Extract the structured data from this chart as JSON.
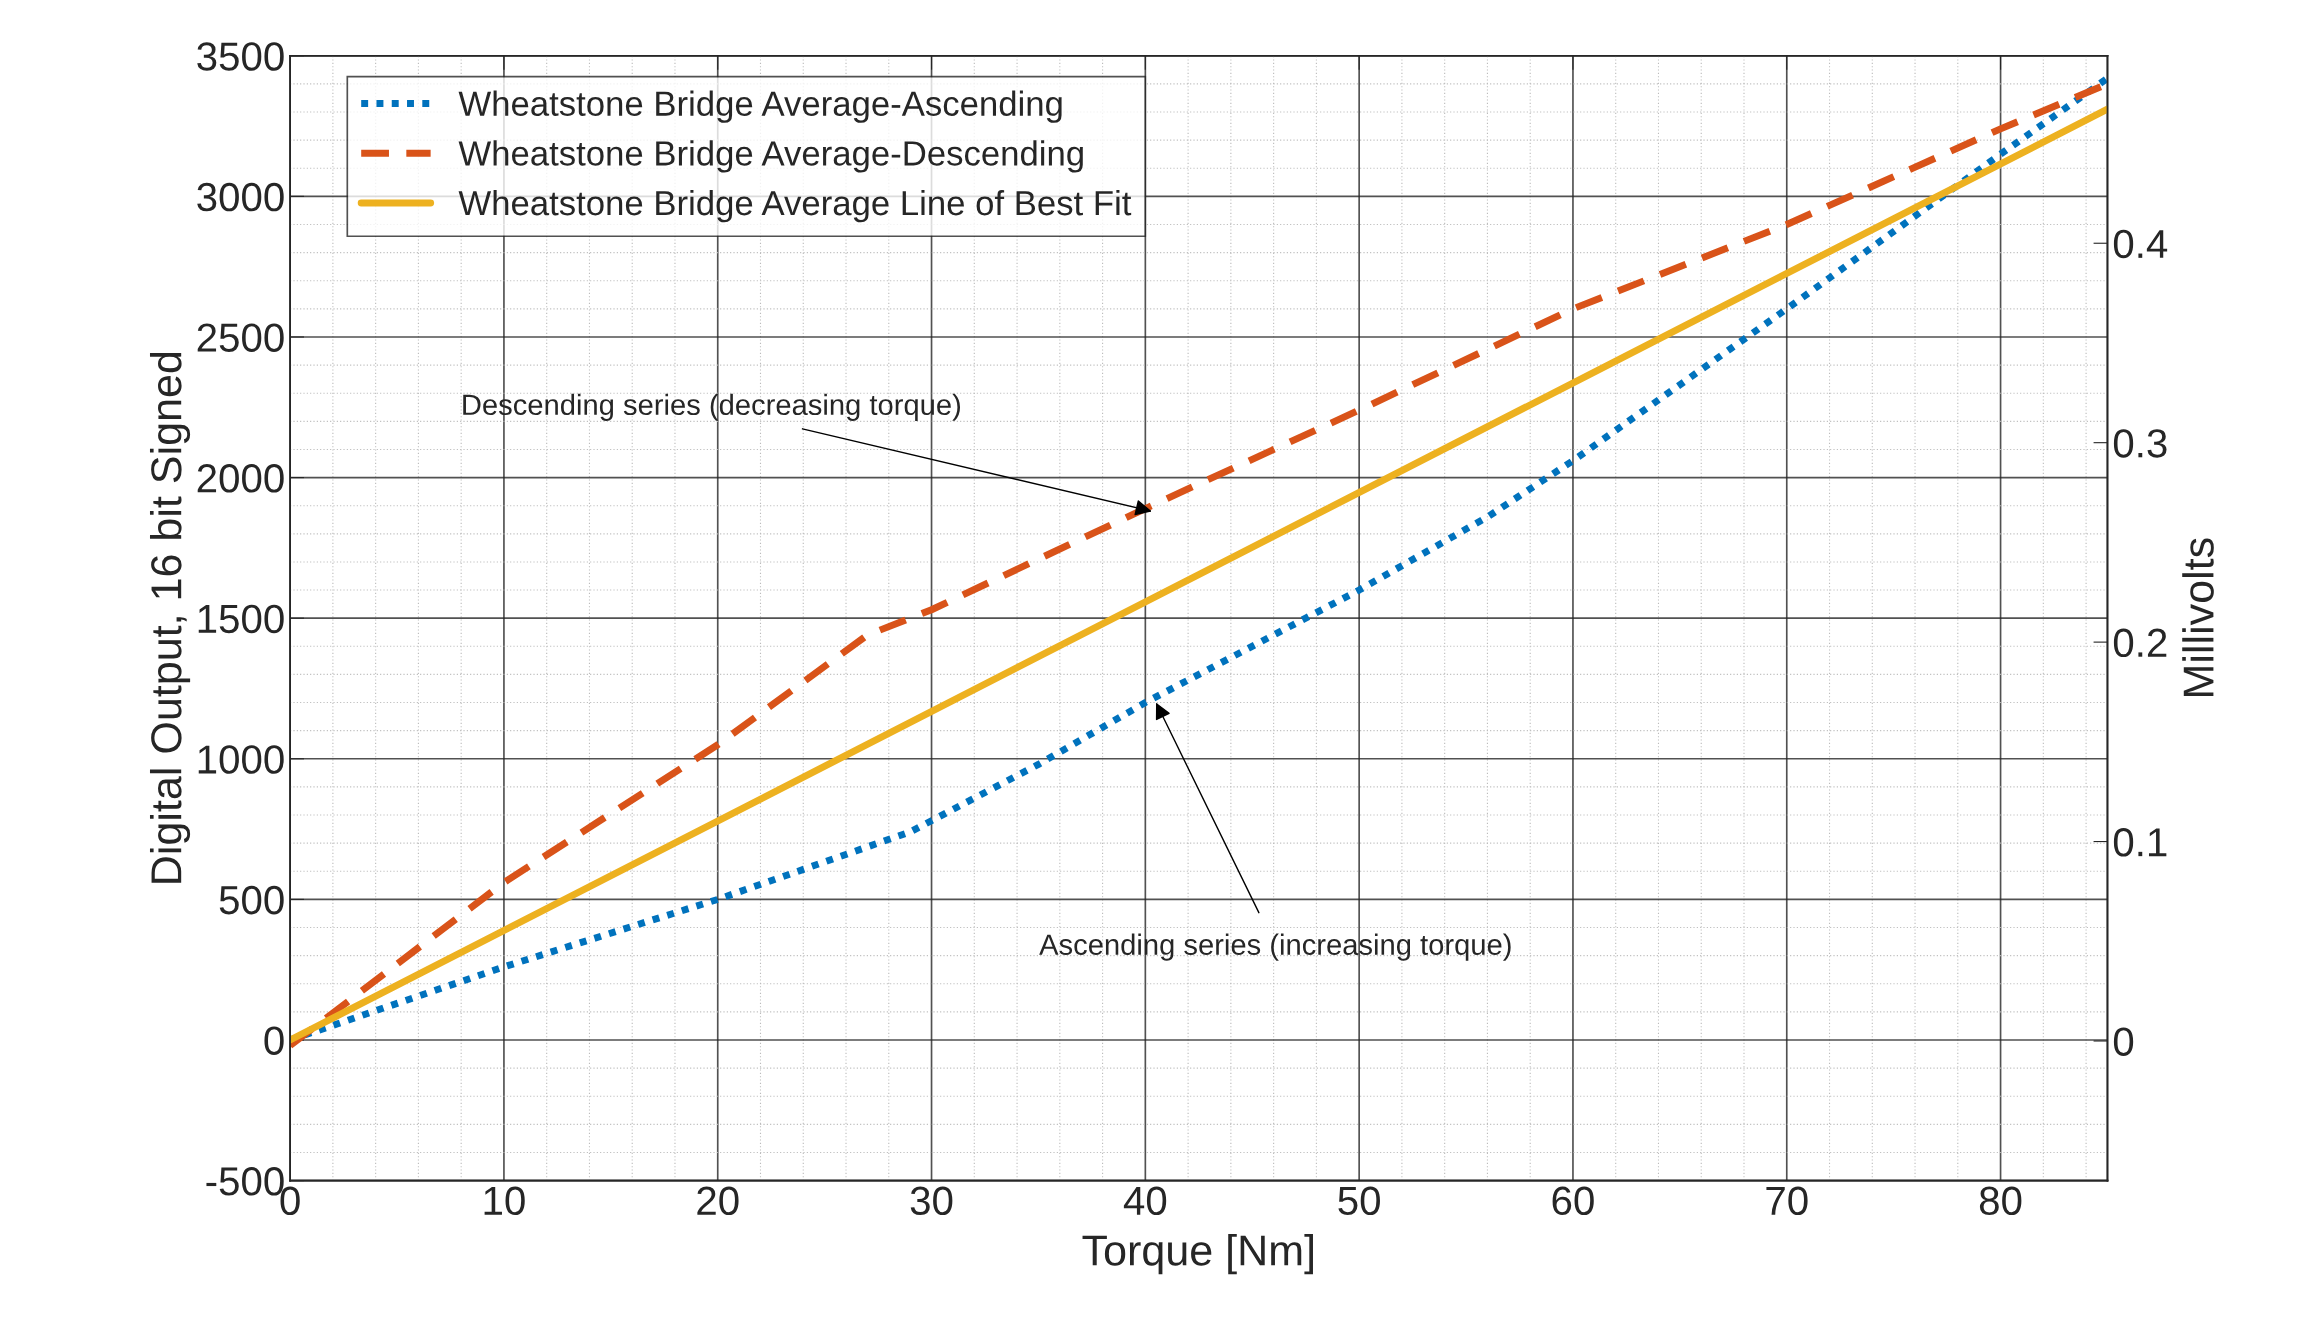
{
  "chart_data": {
    "type": "line",
    "xlabel": "Torque [Nm]",
    "ylabel": "Digital Output, 16 bit Signed",
    "y2label": "Millivolts",
    "xlim": [
      0,
      85
    ],
    "xticks": [
      0,
      10,
      20,
      30,
      40,
      50,
      60,
      70,
      80
    ],
    "ylim": [
      -500,
      3500
    ],
    "yticks": [
      -500,
      0,
      500,
      1000,
      1500,
      2000,
      2500,
      3000,
      3500
    ],
    "y2lim": [
      -0.07,
      0.494
    ],
    "y2ticks": [
      0,
      0.1,
      0.2,
      0.3,
      0.4
    ],
    "grid": true,
    "legend": "top left",
    "series": [
      {
        "name": "Wheatstone Bridge Average-Ascending",
        "color": "#0072bd",
        "line_style": "dotted",
        "x": [
          0,
          10,
          20,
          29,
          35,
          40,
          50,
          56,
          60,
          70,
          80,
          85
        ],
        "values": [
          0,
          260,
          500,
          740,
          980,
          1200,
          1600,
          1860,
          2060,
          2600,
          3150,
          3420
        ]
      },
      {
        "name": "Wheatstone Bridge Average-Descending",
        "color": "#d95319",
        "line_style": "dashed",
        "x": [
          0,
          10,
          20,
          27,
          30,
          40,
          50,
          60,
          70,
          80,
          85
        ],
        "values": [
          -20,
          560,
          1050,
          1440,
          1530,
          1890,
          2240,
          2600,
          2900,
          3240,
          3400
        ]
      },
      {
        "name": "Wheatstone Bridge Average Line of Best Fit",
        "color": "#edb120",
        "line_style": "solid",
        "x": [
          0,
          85
        ],
        "values": [
          0,
          3310
        ]
      }
    ],
    "annotations": [
      {
        "text": "Descending series (decreasing torque)",
        "x": 40.3,
        "y": 1880
      },
      {
        "text": "Ascending series (increasing torque)",
        "x": 40.5,
        "y": 1200
      }
    ]
  }
}
